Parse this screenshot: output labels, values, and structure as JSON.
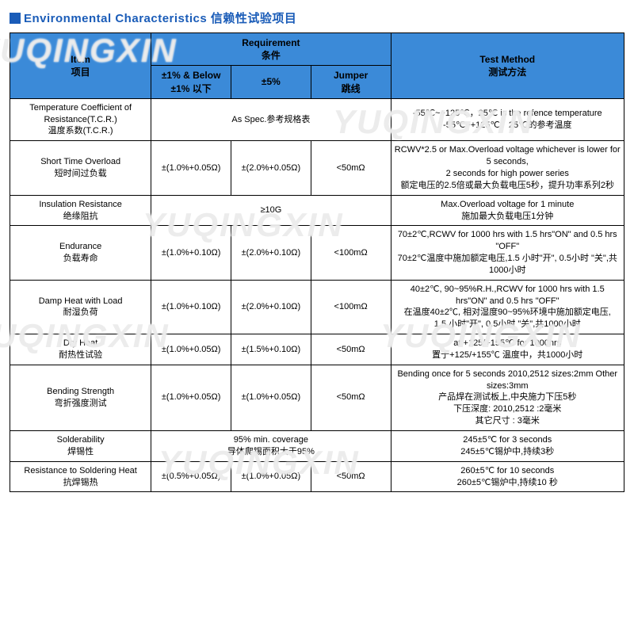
{
  "title": "Environmental Characteristics 信赖性试验项目",
  "colors": {
    "header_bg": "#3b8ad8",
    "title_color": "#1a5cb8",
    "border": "#000000",
    "background": "#ffffff",
    "watermark": "rgba(220,220,220,0.55)"
  },
  "watermark_text": "YUQINGXIN",
  "header": {
    "item": "Item\n项目",
    "requirement": "Requirement\n条件",
    "method": "Test Method\n测试方法",
    "sub1": "±1% & Below\n±1% 以下",
    "sub2": "±5%",
    "sub3": "Jumper\n跳线"
  },
  "rows": [
    {
      "item": "Temperature Coefficient of Resistance(T.C.R.)\n温度系数(T.C.R.)",
      "req_span": "As Spec.参考规格表",
      "method": "-55℃~+125℃，25℃ is the refence temperature\n-55℃~+125℃，25℃的参考温度"
    },
    {
      "item": "Short Time Overload\n短时间过负载",
      "r1": "±(1.0%+0.05Ω)",
      "r2": "±(2.0%+0.05Ω)",
      "r3": "<50mΩ",
      "method": "RCWV*2.5 or Max.Overload voltage whichever is lower for 5 seconds,\n2 seconds for high power series\n额定电压的2.5倍或最大负载电压5秒，提升功率系列2秒"
    },
    {
      "item": "Insulation Resistance\n绝缘阻抗",
      "req_span": "≥10G",
      "method": "Max.Overload voltage for 1 minute\n施加最大负载电压1分钟"
    },
    {
      "item": "Endurance\n负载寿命",
      "r1": "±(1.0%+0.10Ω)",
      "r2": "±(2.0%+0.10Ω)",
      "r3": "<100mΩ",
      "method": "70±2℃,RCWV for 1000 hrs with 1.5 hrs\"ON\" and 0.5 hrs \"OFF\"\n70±2℃温度中施加额定电压,1.5 小时\"开\", 0.5小时 \"关\",共1000小时"
    },
    {
      "item": "Damp Heat with Load\n耐湿负荷",
      "r1": "±(1.0%+0.10Ω)",
      "r2": "±(2.0%+0.10Ω)",
      "r3": "<100mΩ",
      "method": "40±2℃, 90~95%R.H.,RCWV for 1000 hrs with 1.5 hrs\"ON\" and 0.5 hrs \"OFF\"\n在温度40±2℃, 相对湿度90~95%环境中施加额定电压,\n1.5 小时\"开\", 0.5小时 \"关\",共1000小时"
    },
    {
      "item": "Dry Heat\n耐热性试验",
      "r1": "±(1.0%+0.05Ω)",
      "r2": "±(1.5%+0.10Ω)",
      "r3": "<50mΩ",
      "method": "at +125/+155℃ for 1000hrs\n置于+125/+155℃ 温度中，共1000小时"
    },
    {
      "item": "Bending Strength\n弯折强度测试",
      "r1": "±(1.0%+0.05Ω)",
      "r2": "±(1.0%+0.05Ω)",
      "r3": "<50mΩ",
      "method": "Bending once for 5 seconds  2010,2512 sizes:2mm   Other sizes:3mm\n产品焊在测试板上,中央施力下压5秒\n下压深度: 2010,2512 :2毫米\n其它尺寸 : 3毫米"
    },
    {
      "item": "Solderability\n焊锡性",
      "req_span": "95% min. coverage\n导体爬锡面积大于95%",
      "method": "245±5℃ for 3 seconds\n245±5℃锡炉中,持续3秒"
    },
    {
      "item": "Resistance to Soldering Heat\n抗焊锡热",
      "r1": "±(0.5%+0.05Ω)",
      "r2": "±(1.0%+0.05Ω)",
      "r3": "<50mΩ",
      "method": "260±5℃ for 10 seconds\n260±5℃锡炉中,持续10 秒"
    }
  ]
}
